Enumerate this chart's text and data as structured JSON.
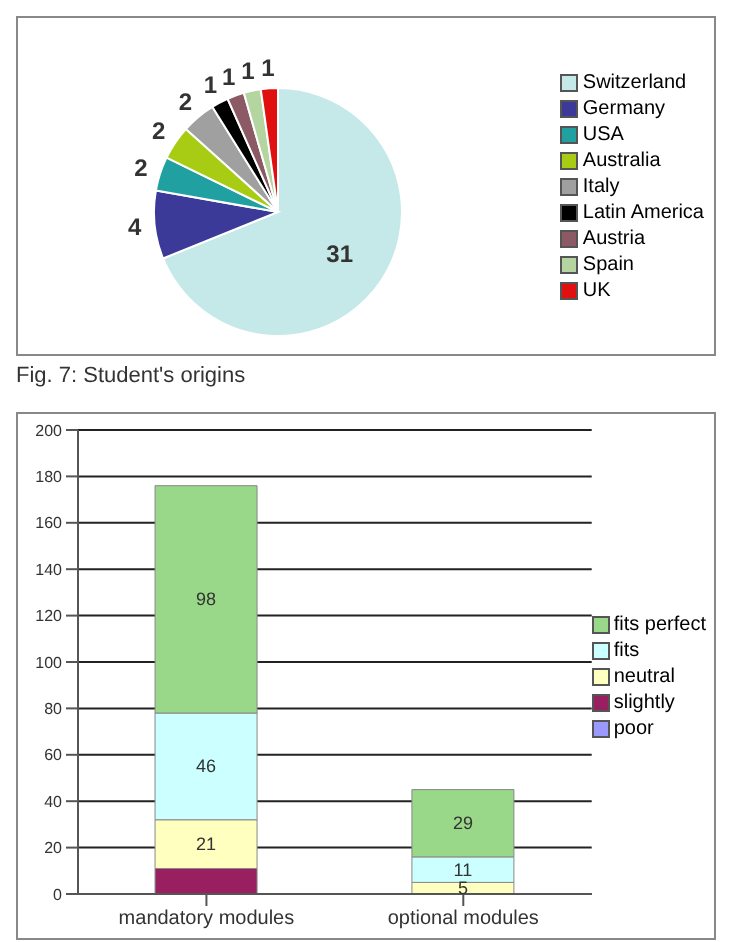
{
  "chart_data": [
    {
      "type": "pie",
      "categories": [
        "Switzerland",
        "Germany",
        "USA",
        "Australia",
        "Italy",
        "Latin America",
        "Austria",
        "Spain",
        "UK"
      ],
      "values": [
        31,
        4,
        2,
        2,
        2,
        1,
        1,
        1,
        1
      ],
      "colors": [
        "#c5e8e8",
        "#3b3a98",
        "#20a0a0",
        "#a8cc14",
        "#a0a0a0",
        "#000000",
        "#8c5a64",
        "#b4d4a0",
        "#e01010"
      ],
      "data_labels": true,
      "legend": "right",
      "annotations": [
        "Fig. 7: Student's origins"
      ]
    },
    {
      "type": "bar",
      "stacked": true,
      "categories": [
        "mandatory modules",
        "optional modules"
      ],
      "series": [
        {
          "name": "poor",
          "color": "#9999ff",
          "values": [
            0,
            0
          ],
          "value_labels": [
            null,
            null
          ]
        },
        {
          "name": "slightly",
          "color": "#992060",
          "values": [
            11,
            0
          ],
          "value_labels": [
            null,
            null
          ]
        },
        {
          "name": "neutral",
          "color": "#ffffc0",
          "values": [
            21,
            5
          ],
          "value_labels": [
            "21",
            "5"
          ]
        },
        {
          "name": "fits",
          "color": "#ccffff",
          "values": [
            46,
            11
          ],
          "value_labels": [
            "46",
            "11"
          ]
        },
        {
          "name": "fits perfect",
          "color": "#98d888",
          "values": [
            98,
            29
          ],
          "value_labels": [
            "98",
            "29"
          ]
        }
      ],
      "ylim": [
        0,
        200
      ],
      "yticks": [
        0,
        20,
        40,
        60,
        80,
        100,
        120,
        140,
        160,
        180,
        200
      ],
      "grid": "y",
      "legend": "right"
    }
  ]
}
